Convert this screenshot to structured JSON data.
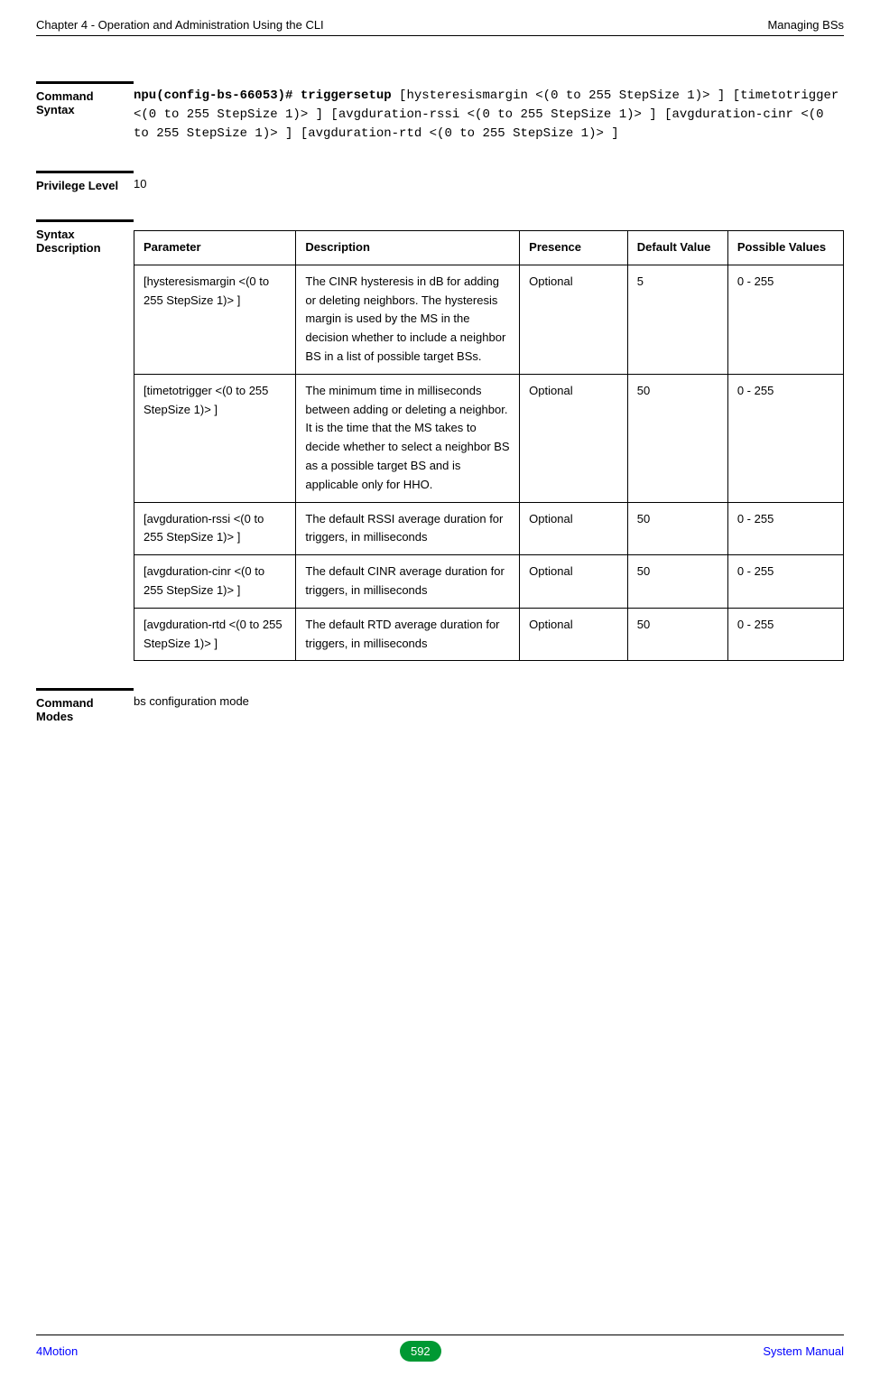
{
  "header": {
    "left": "Chapter 4 - Operation and Administration Using the CLI",
    "right": "Managing BSs"
  },
  "sections": {
    "command_syntax": {
      "label": "Command Syntax",
      "bold_prefix": "npu(config-bs-66053)# triggersetup",
      "rest": " [hysteresismargin <(0 to 255 StepSize 1)> ] [timetotrigger <(0 to 255 StepSize 1)> ] [avgduration-rssi <(0 to 255 StepSize 1)> ] [avgduration-cinr <(0 to 255 StepSize 1)> ] [avgduration-rtd <(0 to 255 StepSize 1)> ]"
    },
    "privilege": {
      "label": "Privilege Level",
      "value": "10"
    },
    "syntax_desc": {
      "label": "Syntax Description",
      "headers": {
        "param": "Parameter",
        "desc": "Description",
        "presence": "Presence",
        "default": "Default Value",
        "possible": "Possible Values"
      },
      "rows": [
        {
          "param": "[hysteresismargin <(0 to 255 StepSize 1)> ]",
          "desc": "The CINR hysteresis in dB for adding or deleting neighbors. The hysteresis margin is used by the MS in the decision whether to include a neighbor BS in a list of possible target BSs.",
          "presence": "Optional",
          "default": "5",
          "possible": "0 - 255"
        },
        {
          "param": "[timetotrigger <(0 to 255 StepSize 1)> ]",
          "desc": "The minimum time in milliseconds between adding or deleting a neighbor.  It is the time that the MS takes to decide whether to select a neighbor BS as a possible target BS and is applicable only for HHO.",
          "presence": "Optional",
          "default": "50",
          "possible": "0 - 255"
        },
        {
          "param": "[avgduration-rssi <(0 to 255 StepSize 1)> ]",
          "desc": "The default RSSI average duration for triggers, in milliseconds",
          "presence": "Optional",
          "default": "50",
          "possible": "0 - 255"
        },
        {
          "param": "[avgduration-cinr <(0 to 255 StepSize 1)> ]",
          "desc": "The default CINR average duration for triggers, in milliseconds",
          "presence": "Optional",
          "default": "50",
          "possible": "0 - 255"
        },
        {
          "param": "[avgduration-rtd <(0 to 255 StepSize 1)> ]",
          "desc": "The default RTD average duration for triggers, in milliseconds",
          "presence": "Optional",
          "default": "50",
          "possible": "0 - 255"
        }
      ]
    },
    "command_modes": {
      "label": "Command Modes",
      "value": "bs configuration mode"
    }
  },
  "footer": {
    "left": "4Motion",
    "page": "592",
    "right": "System Manual"
  }
}
